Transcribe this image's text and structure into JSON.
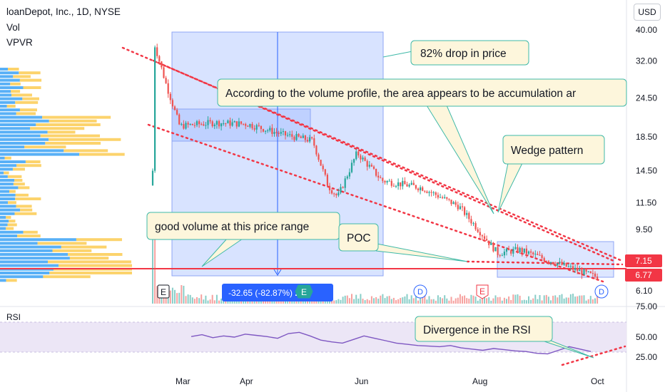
{
  "header": {
    "title": "loanDepot, Inc., 1D, NYSE",
    "indicator_vol": "Vol",
    "indicator_vpvr": "VPVR",
    "currency": "USD"
  },
  "price_axis": {
    "ticks": [
      {
        "value": 40.0,
        "label": "40.00"
      },
      {
        "value": 32.0,
        "label": "32.00"
      },
      {
        "value": 24.5,
        "label": "24.50"
      },
      {
        "value": 18.5,
        "label": "18.50"
      },
      {
        "value": 14.5,
        "label": "14.50"
      },
      {
        "value": 11.5,
        "label": "11.50"
      },
      {
        "value": 9.5,
        "label": "9.50"
      },
      {
        "value": 6.1,
        "label": "6.10"
      }
    ],
    "last_price_tags": [
      {
        "value": 7.15,
        "label": "7.15",
        "color": "#f23645"
      },
      {
        "value": 6.77,
        "label": "6.77",
        "color": "#f23645"
      }
    ]
  },
  "time_axis": [
    "Mar",
    "Apr",
    "Jun",
    "Aug",
    "Oct"
  ],
  "chart_data": {
    "type": "candlestick",
    "title": "loanDepot, Inc., 1D, NYSE",
    "price_scale": "log",
    "ylim": [
      6.0,
      41.0
    ],
    "series_close_approx": [
      {
        "date": "2021-02-11",
        "close": 14.5
      },
      {
        "date": "2021-02-12",
        "close": 36.0
      },
      {
        "date": "2021-02-18",
        "close": 27.0
      },
      {
        "date": "2021-02-25",
        "close": 20.0
      },
      {
        "date": "2021-03-15",
        "close": 20.5
      },
      {
        "date": "2021-04-01",
        "close": 20.3
      },
      {
        "date": "2021-04-20",
        "close": 18.8
      },
      {
        "date": "2021-05-05",
        "close": 18.0
      },
      {
        "date": "2021-05-13",
        "close": 13.0
      },
      {
        "date": "2021-05-18",
        "close": 12.0
      },
      {
        "date": "2021-05-28",
        "close": 16.5
      },
      {
        "date": "2021-06-10",
        "close": 13.5
      },
      {
        "date": "2021-07-01",
        "close": 12.8
      },
      {
        "date": "2021-07-20",
        "close": 11.2
      },
      {
        "date": "2021-08-02",
        "close": 9.0
      },
      {
        "date": "2021-08-09",
        "close": 8.0
      },
      {
        "date": "2021-08-20",
        "close": 8.2
      },
      {
        "date": "2021-09-10",
        "close": 7.4
      },
      {
        "date": "2021-09-28",
        "close": 6.77
      }
    ],
    "horizontal_line": {
      "value": 6.77,
      "color": "#f23645"
    },
    "measure": {
      "label": "-32.65 (-82.87%) 2.65",
      "from_price": 39.4,
      "to_price": 6.75
    },
    "rsi": {
      "label": "RSI",
      "levels": [
        {
          "value": 75.0,
          "label": "75.00"
        },
        {
          "value": 50.0,
          "label": "50.00"
        },
        {
          "value": 25.0,
          "label": "25.00"
        }
      ],
      "values": [
        51,
        54,
        49,
        52,
        50,
        55,
        53,
        51,
        48,
        56,
        58,
        52,
        45,
        42,
        40,
        46,
        52,
        48,
        44,
        40,
        38,
        36,
        35,
        34,
        36,
        32,
        30,
        28,
        31,
        29,
        27,
        26,
        23,
        22,
        28,
        34,
        30,
        26
      ]
    },
    "annotations": [
      "82% drop in price",
      "According to the volume profile, the area appears to be accumulation ar",
      "Wedge pattern",
      "good volume at this price range",
      "POC",
      "Divergence in the RSI"
    ],
    "event_badges": [
      "E",
      "E",
      "E",
      "D",
      "D"
    ]
  }
}
